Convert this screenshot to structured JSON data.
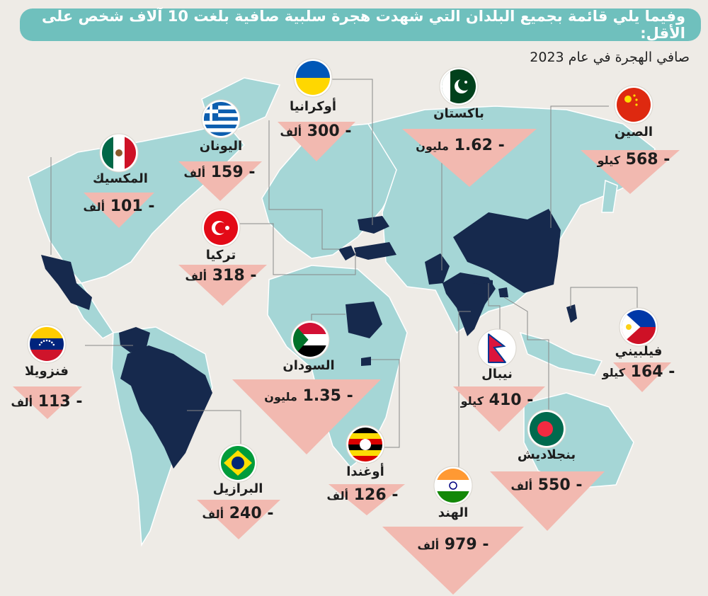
{
  "title": "وفيما يلي قائمة بجميع البلدان التي شهدت هجرة سلبية صافية بلغت 10 آلاف شخص على الأقل:",
  "subtitle": "صافي الهجرة في عام 2023",
  "colors": {
    "title_bg": "#6fc0bd",
    "land": "#a5d6d6",
    "highlight": "#16294d",
    "triangle": "#f2b9b0",
    "leader": "#888888"
  },
  "countries": [
    {
      "id": "china",
      "name": "الصين",
      "value": "568",
      "unit": "كيلو",
      "flag": "china-flag-icon"
    },
    {
      "id": "pakistan",
      "name": "باكستان",
      "value": "1.62",
      "unit": "مليون",
      "flag": "pakistan-flag-icon"
    },
    {
      "id": "ukraine",
      "name": "أوكرانيا",
      "value": "300",
      "unit": "ألف",
      "flag": "ukraine-flag-icon"
    },
    {
      "id": "greece",
      "name": "اليونان",
      "value": "159",
      "unit": "ألف",
      "flag": "greece-flag-icon"
    },
    {
      "id": "mexico",
      "name": "المكسيك",
      "value": "101",
      "unit": "ألف",
      "flag": "mexico-flag-icon"
    },
    {
      "id": "turkey",
      "name": "تركيا",
      "value": "318",
      "unit": "ألف",
      "flag": "turkey-flag-icon"
    },
    {
      "id": "venezuela",
      "name": "فنزويلا",
      "value": "113",
      "unit": "ألف",
      "flag": "venezuela-flag-icon"
    },
    {
      "id": "sudan",
      "name": "السودان",
      "value": "1.35",
      "unit": "مليون",
      "flag": "sudan-flag-icon"
    },
    {
      "id": "brazil",
      "name": "البرازيل",
      "value": "240",
      "unit": "ألف",
      "flag": "brazil-flag-icon"
    },
    {
      "id": "uganda",
      "name": "أوغندا",
      "value": "126",
      "unit": "ألف",
      "flag": "uganda-flag-icon"
    },
    {
      "id": "india",
      "name": "الهند",
      "value": "979",
      "unit": "ألف",
      "flag": "india-flag-icon"
    },
    {
      "id": "nepal",
      "name": "نيبال",
      "value": "410",
      "unit": "كيلو",
      "flag": "nepal-flag-icon"
    },
    {
      "id": "bangladesh",
      "name": "بنجلاديش",
      "value": "550",
      "unit": "ألف",
      "flag": "bangladesh-flag-icon"
    },
    {
      "id": "philippines",
      "name": "فيلبيني",
      "value": "164",
      "unit": "كيلو",
      "flag": "philippines-flag-icon"
    }
  ]
}
